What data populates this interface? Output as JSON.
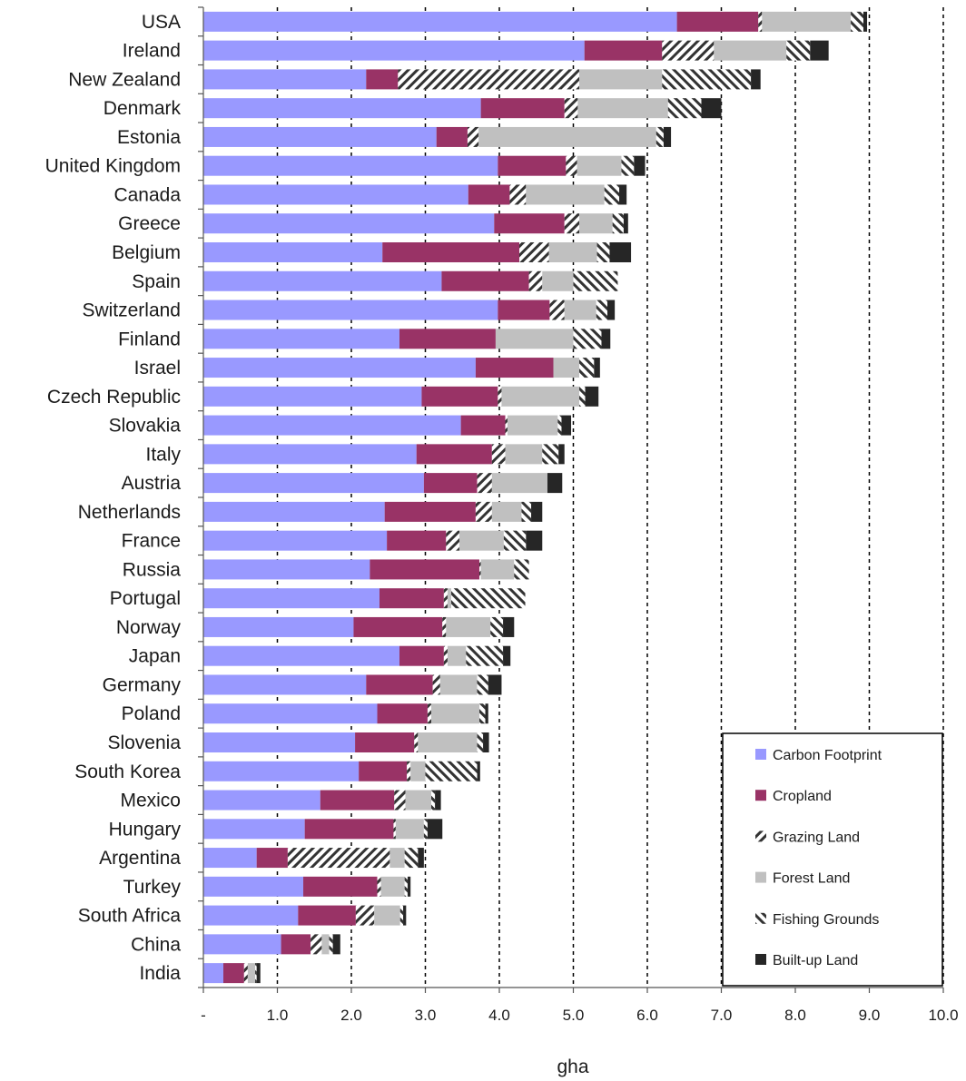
{
  "chart_data": {
    "type": "bar",
    "orientation": "horizontal",
    "stacked": true,
    "xlabel": "gha",
    "xlim": [
      0,
      10
    ],
    "x_ticks": [
      "-",
      "1.0",
      "2.0",
      "3.0",
      "4.0",
      "5.0",
      "6.0",
      "7.0",
      "8.0",
      "9.0",
      "10.0"
    ],
    "grid": "vertical dashed at integer gha values",
    "legend_position": "bottom-right",
    "categories": [
      "USA",
      "Ireland",
      "New Zealand",
      "Denmark",
      "Estonia",
      "United Kingdom",
      "Canada",
      "Greece",
      "Belgium",
      "Spain",
      "Switzerland",
      "Finland",
      "Israel",
      "Czech Republic",
      "Slovakia",
      "Italy",
      "Austria",
      "Netherlands",
      "France",
      "Russia",
      "Portugal",
      "Norway",
      "Japan",
      "Germany",
      "Poland",
      "Slovenia",
      "South Korea",
      "Mexico",
      "Hungary",
      "Argentina",
      "Turkey",
      "South Africa",
      "China",
      "India"
    ],
    "series": [
      {
        "name": "Carbon Footprint",
        "color": "#9999ff",
        "pattern": "solid",
        "values": [
          6.4,
          5.15,
          2.2,
          3.75,
          3.15,
          3.98,
          3.58,
          3.93,
          2.42,
          3.22,
          3.98,
          2.65,
          3.68,
          2.95,
          3.48,
          2.88,
          2.98,
          2.45,
          2.48,
          2.25,
          2.38,
          2.03,
          2.65,
          2.2,
          2.35,
          2.05,
          2.1,
          1.58,
          1.37,
          0.72,
          1.35,
          1.28,
          1.05,
          0.27
        ]
      },
      {
        "name": "Cropland",
        "color": "#993366",
        "pattern": "solid",
        "values": [
          1.1,
          1.05,
          0.43,
          1.13,
          0.42,
          0.92,
          0.56,
          0.95,
          1.85,
          1.18,
          0.7,
          1.3,
          1.05,
          1.03,
          0.6,
          1.02,
          0.72,
          1.23,
          0.8,
          1.48,
          0.87,
          1.2,
          0.6,
          0.9,
          0.68,
          0.8,
          0.65,
          1.0,
          1.2,
          0.42,
          1.0,
          0.78,
          0.4,
          0.28
        ]
      },
      {
        "name": "Grazing Land",
        "color": "#333333",
        "pattern": "hatch-forward",
        "values": [
          0.05,
          0.7,
          2.45,
          0.18,
          0.15,
          0.15,
          0.22,
          0.2,
          0.4,
          0.18,
          0.2,
          0.0,
          0.0,
          0.05,
          0.03,
          0.18,
          0.2,
          0.22,
          0.18,
          0.02,
          0.05,
          0.05,
          0.05,
          0.1,
          0.05,
          0.05,
          0.05,
          0.15,
          0.03,
          1.38,
          0.05,
          0.25,
          0.15,
          0.05
        ]
      },
      {
        "name": "Forest Land",
        "color": "#c0c0c0",
        "pattern": "solid",
        "values": [
          1.2,
          0.98,
          1.12,
          1.22,
          2.4,
          0.6,
          1.06,
          0.45,
          0.65,
          0.42,
          0.43,
          1.05,
          0.35,
          1.05,
          0.68,
          0.5,
          0.75,
          0.4,
          0.6,
          0.45,
          0.05,
          0.6,
          0.25,
          0.5,
          0.65,
          0.8,
          0.2,
          0.35,
          0.38,
          0.2,
          0.32,
          0.35,
          0.1,
          0.1
        ]
      },
      {
        "name": "Fishing Grounds",
        "color": "#333333",
        "pattern": "hatch-backward",
        "values": [
          0.17,
          0.32,
          1.2,
          0.45,
          0.1,
          0.17,
          0.2,
          0.15,
          0.17,
          0.6,
          0.15,
          0.38,
          0.2,
          0.08,
          0.05,
          0.22,
          0.0,
          0.13,
          0.3,
          0.2,
          1.0,
          0.17,
          0.5,
          0.15,
          0.08,
          0.08,
          0.7,
          0.05,
          0.05,
          0.18,
          0.04,
          0.04,
          0.05,
          0.02
        ]
      },
      {
        "name": "Built-up Land",
        "color": "#262626",
        "pattern": "solid",
        "values": [
          0.05,
          0.25,
          0.13,
          0.27,
          0.1,
          0.15,
          0.1,
          0.06,
          0.29,
          0.0,
          0.1,
          0.12,
          0.08,
          0.18,
          0.13,
          0.08,
          0.2,
          0.15,
          0.22,
          0.0,
          0.0,
          0.15,
          0.1,
          0.18,
          0.04,
          0.08,
          0.04,
          0.08,
          0.2,
          0.08,
          0.04,
          0.04,
          0.1,
          0.05
        ]
      }
    ]
  }
}
